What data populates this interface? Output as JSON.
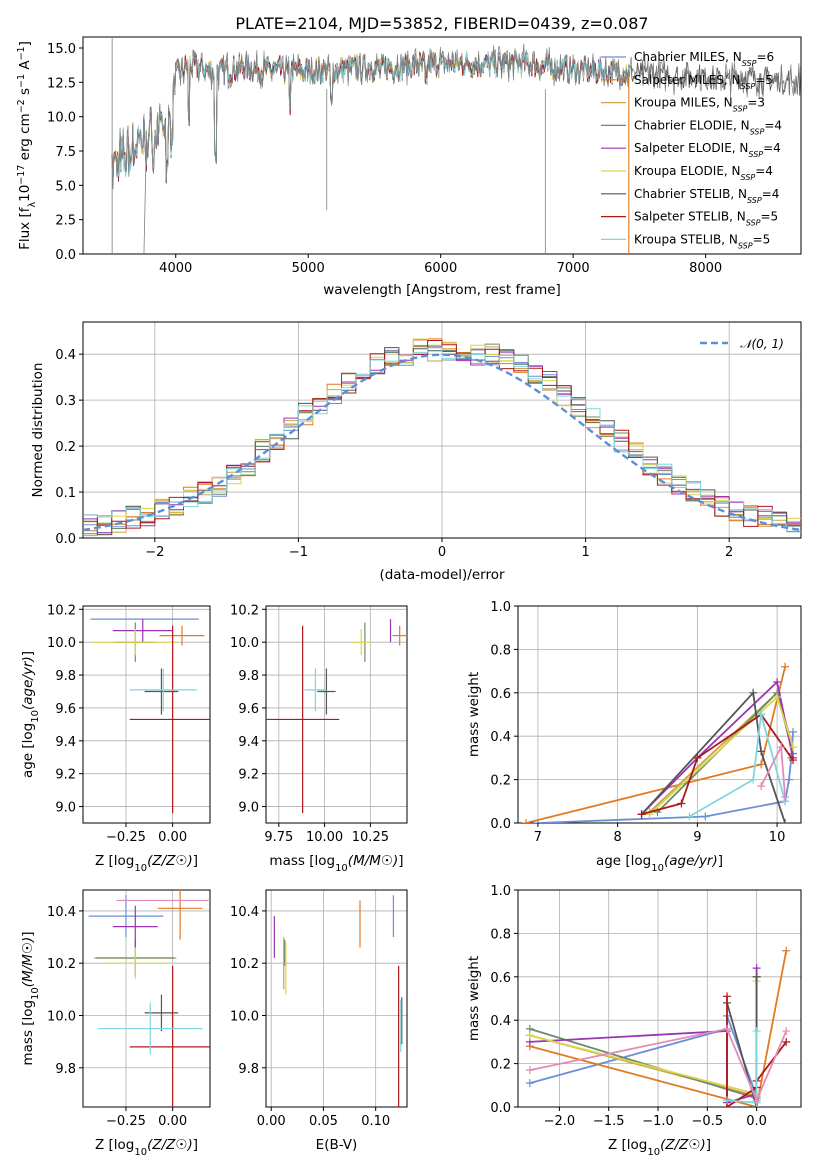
{
  "title": "PLATE=2104, MJD=53852, FIBERID=0439, z=0.087",
  "colors": {
    "Chabrier MILES": "#6a8fd6",
    "Salpeter MILES": "#e07b24",
    "Kroupa MILES": "#c9a24a",
    "Chabrier ELODIE": "#6e8a6e",
    "Salpeter ELODIE": "#9b35b5",
    "Kroupa ELODIE": "#dcd64a",
    "Chabrier STELIB": "#555555",
    "Salpeter STELIB": "#b01818",
    "Kroupa STELIB": "#7fd6e0",
    "data": "#808080",
    "gauss": "#5b8fd8"
  },
  "legend_spectrum": [
    {
      "name": "Chabrier MILES",
      "sub": "SSP",
      "n": "=6"
    },
    {
      "name": "Salpeter MILES",
      "sub": "SSP",
      "n": "=5"
    },
    {
      "name": "Kroupa MILES",
      "sub": "SSP",
      "n": "=3"
    },
    {
      "name": "Chabrier ELODIE",
      "sub": "SSP",
      "n": "=4"
    },
    {
      "name": "Salpeter ELODIE",
      "sub": "SSP",
      "n": "=4"
    },
    {
      "name": "Kroupa ELODIE",
      "sub": "SSP",
      "n": "=4"
    },
    {
      "name": "Chabrier STELIB",
      "sub": "SSP",
      "n": "=4"
    },
    {
      "name": "Salpeter STELIB",
      "sub": "SSP",
      "n": "=5"
    },
    {
      "name": "Kroupa STELIB",
      "sub": "SSP",
      "n": "=5"
    }
  ],
  "legend_hist": "𝒩(0, 1)",
  "chart_data": [
    {
      "id": "spectrum",
      "type": "line",
      "xlabel": "wavelength [Angstrom, rest frame]",
      "ylabel": "Flux [f_λ 10^-17 erg cm^-2 s^-1 A^-1]",
      "xlim": [
        3300,
        8720
      ],
      "ylim": [
        0,
        15.8
      ],
      "xticks": [
        4000,
        5000,
        6000,
        7000,
        8000
      ],
      "yticks": [
        0.0,
        2.5,
        5.0,
        7.5,
        10.0,
        12.5,
        15.0
      ],
      "continuum_x": [
        3550,
        3700,
        3850,
        3950,
        4000,
        4100,
        4300,
        4500,
        4700,
        5000,
        5300,
        5600,
        6000,
        6300,
        6600,
        7000,
        7400,
        7800,
        8200,
        8700
      ],
      "continuum_y": [
        6.5,
        8.0,
        8.5,
        10.0,
        13.0,
        13.8,
        13.2,
        13.6,
        13.4,
        13.3,
        13.5,
        13.6,
        13.9,
        13.8,
        13.9,
        13.4,
        13.2,
        13.0,
        12.8,
        12.6
      ],
      "model_end": [
        7420,
        7420,
        7420,
        7420,
        7420,
        7420,
        8720,
        7420,
        7420
      ]
    },
    {
      "id": "residuals",
      "type": "histogram",
      "xlabel": "(data-model)/error",
      "ylabel": "Normed distribution",
      "xlim": [
        -2.5,
        2.5
      ],
      "ylim": [
        0,
        0.47
      ],
      "xticks": [
        -2,
        -1,
        0,
        1,
        2
      ],
      "yticks": [
        0.0,
        0.1,
        0.2,
        0.3,
        0.4
      ],
      "bins": [
        -2.5,
        -2.4,
        -2.3,
        -2.2,
        -2.1,
        -2.0,
        -1.9,
        -1.8,
        -1.7,
        -1.6,
        -1.5,
        -1.4,
        -1.3,
        -1.2,
        -1.1,
        -1.0,
        -0.9,
        -0.8,
        -0.7,
        -0.6,
        -0.5,
        -0.4,
        -0.3,
        -0.2,
        -0.1,
        0.0,
        0.1,
        0.2,
        0.3,
        0.4,
        0.5,
        0.6,
        0.7,
        0.8,
        0.9,
        1.0,
        1.1,
        1.2,
        1.3,
        1.4,
        1.5,
        1.6,
        1.7,
        1.8,
        1.9,
        2.0,
        2.1,
        2.2,
        2.3,
        2.4,
        2.5
      ],
      "base": [
        0.03,
        0.03,
        0.035,
        0.045,
        0.05,
        0.06,
        0.07,
        0.09,
        0.1,
        0.11,
        0.14,
        0.16,
        0.19,
        0.21,
        0.24,
        0.27,
        0.29,
        0.31,
        0.34,
        0.36,
        0.38,
        0.39,
        0.4,
        0.41,
        0.41,
        0.41,
        0.41,
        0.4,
        0.4,
        0.39,
        0.38,
        0.36,
        0.34,
        0.31,
        0.29,
        0.26,
        0.24,
        0.21,
        0.19,
        0.16,
        0.14,
        0.12,
        0.1,
        0.09,
        0.07,
        0.06,
        0.05,
        0.045,
        0.04,
        0.035
      ],
      "gauss": {
        "mu": 0,
        "sigma": 1
      }
    },
    {
      "id": "age_vs_Z",
      "type": "errorbar",
      "xlabel": "Z [log10(Z/Z☉)]",
      "ylabel": "age  [log10(age/yr)]",
      "xlim": [
        -0.48,
        0.2
      ],
      "ylim": [
        8.9,
        10.22
      ],
      "xticks": [
        -0.25,
        0.0
      ],
      "xticklabels": [
        "−0.25",
        "0.00"
      ],
      "yticks": [
        9.0,
        9.2,
        9.4,
        9.6,
        9.8,
        10.0,
        10.2
      ],
      "points": [
        {
          "s": "Chabrier MILES",
          "x": -0.15,
          "xe": 0.29,
          "y": 10.14,
          "ye": 0.0
        },
        {
          "s": "Salpeter MILES",
          "x": 0.05,
          "xe": 0.12,
          "y": 10.04,
          "ye": 0.06
        },
        {
          "s": "Kroupa MILES",
          "x": -0.2,
          "xe": 0.12,
          "y": 10.0,
          "ye": 0.0
        },
        {
          "s": "Chabrier ELODIE",
          "x": -0.2,
          "xe": 0.1,
          "y": 10.0,
          "ye": 0.12
        },
        {
          "s": "Salpeter ELODIE",
          "x": -0.16,
          "xe": 0.16,
          "y": 10.07,
          "ye": 0.07
        },
        {
          "s": "Kroupa ELODIE",
          "x": -0.2,
          "xe": 0.23,
          "y": 10.0,
          "ye": 0.08
        },
        {
          "s": "Chabrier STELIB",
          "x": -0.06,
          "xe": 0.09,
          "y": 9.7,
          "ye": 0.14
        },
        {
          "s": "Salpeter STELIB",
          "x": 0.0,
          "xe": 0.23,
          "y": 9.53,
          "ye": 0.57
        },
        {
          "s": "Kroupa STELIB",
          "x": -0.05,
          "xe": 0.18,
          "y": 9.71,
          "ye": 0.13
        }
      ]
    },
    {
      "id": "age_vs_mass",
      "type": "errorbar",
      "xlabel": "mass [log10(M/M☉)]",
      "ylabel": "",
      "xlim": [
        9.68,
        10.45
      ],
      "ylim": [
        8.9,
        10.22
      ],
      "xticks": [
        9.75,
        10.0,
        10.25
      ],
      "xticklabels": [
        "9.75",
        "10.00",
        "10.25"
      ],
      "yticks": [
        9.0,
        9.2,
        9.4,
        9.6,
        9.8,
        10.0,
        10.2
      ],
      "points": [
        {
          "s": "Chabrier MILES",
          "x": 10.39,
          "xe": 0.0,
          "y": 10.14,
          "ye": 0.0
        },
        {
          "s": "Salpeter MILES",
          "x": 10.41,
          "xe": 0.04,
          "y": 10.04,
          "ye": 0.06
        },
        {
          "s": "Kroupa MILES",
          "x": 10.22,
          "xe": 0.0,
          "y": 10.0,
          "ye": 0.0
        },
        {
          "s": "Chabrier ELODIE",
          "x": 10.22,
          "xe": 0.0,
          "y": 10.0,
          "ye": 0.12
        },
        {
          "s": "Salpeter ELODIE",
          "x": 10.36,
          "xe": 0.0,
          "y": 10.07,
          "ye": 0.07
        },
        {
          "s": "Kroupa ELODIE",
          "x": 10.2,
          "xe": 0.06,
          "y": 10.0,
          "ye": 0.08
        },
        {
          "s": "Chabrier STELIB",
          "x": 10.01,
          "xe": 0.05,
          "y": 9.7,
          "ye": 0.14
        },
        {
          "s": "Salpeter STELIB",
          "x": 9.88,
          "xe": 0.2,
          "y": 9.53,
          "ye": 0.57
        },
        {
          "s": "Kroupa STELIB",
          "x": 9.95,
          "xe": 0.06,
          "y": 9.71,
          "ye": 0.13
        }
      ]
    },
    {
      "id": "weight_vs_age",
      "type": "line",
      "xlabel": "age  [log10(age/yr)]",
      "ylabel": "mass weight",
      "xlim": [
        6.75,
        10.3
      ],
      "ylim": [
        0.0,
        1.0
      ],
      "xticks": [
        7,
        8,
        9,
        10
      ],
      "yticks": [
        0.0,
        0.2,
        0.4,
        0.6,
        0.8,
        1.0
      ],
      "series": [
        {
          "s": "Chabrier MILES",
          "x": [
            7.0,
            9.1,
            10.1,
            10.15,
            10.18,
            10.2
          ],
          "y": [
            0.0,
            0.03,
            0.1,
            0.2,
            0.3,
            0.42
          ]
        },
        {
          "s": "Salpeter MILES",
          "x": [
            6.85,
            9.8,
            10.1
          ],
          "y": [
            0.0,
            0.27,
            0.72
          ]
        },
        {
          "s": "Kroupa MILES",
          "x": [
            8.4,
            10.0,
            10.2
          ],
          "y": [
            0.05,
            0.6,
            0.35
          ]
        },
        {
          "s": "Chabrier ELODIE",
          "x": [
            8.5,
            10.0,
            10.2
          ],
          "y": [
            0.05,
            0.6,
            0.32
          ]
        },
        {
          "s": "Salpeter ELODIE",
          "x": [
            8.3,
            9.0,
            10.0,
            10.2
          ],
          "y": [
            0.04,
            0.3,
            0.65,
            0.3
          ]
        },
        {
          "s": "Kroupa ELODIE",
          "x": [
            8.4,
            10.0,
            10.2
          ],
          "y": [
            0.04,
            0.58,
            0.35
          ]
        },
        {
          "s": "Chabrier STELIB",
          "x": [
            8.3,
            9.7,
            9.8,
            10.1
          ],
          "y": [
            0.04,
            0.6,
            0.33,
            0.0
          ]
        },
        {
          "s": "Salpeter STELIB",
          "x": [
            8.3,
            8.8,
            9.0,
            9.8,
            10.2
          ],
          "y": [
            0.04,
            0.09,
            0.3,
            0.5,
            0.29
          ]
        },
        {
          "s": "Kroupa STELIB",
          "x": [
            8.9,
            9.7,
            9.8,
            10.1
          ],
          "y": [
            0.03,
            0.2,
            0.5,
            0.1
          ]
        }
      ],
      "extra": {
        "s": "Salpeter ELODIE",
        "x": [
          9.8,
          10.05,
          10.1
        ],
        "y": [
          0.17,
          0.35,
          0.12
        ]
      }
    },
    {
      "id": "mass_vs_Z",
      "type": "errorbar",
      "xlabel": "Z [log10(Z/Z☉)]",
      "ylabel": "mass [log10(M/M☉)]",
      "xlim": [
        -0.48,
        0.2
      ],
      "ylim": [
        9.65,
        10.48
      ],
      "xticks": [
        -0.25,
        0.0
      ],
      "xticklabels": [
        "−0.25",
        "0.00"
      ],
      "yticks": [
        9.8,
        10.0,
        10.2,
        10.4
      ],
      "points": [
        {
          "s": "Chabrier MILES",
          "x": -0.25,
          "xe": 0.2,
          "y": 10.38,
          "ye": 0.08
        },
        {
          "s": "Salpeter MILES",
          "x": 0.04,
          "xe": 0.12,
          "y": 10.41,
          "ye": 0.12
        },
        {
          "s": "Kroupa MILES",
          "x": -0.2,
          "xe": 0.22,
          "y": 10.22,
          "ye": 0.0
        },
        {
          "s": "Chabrier ELODIE",
          "x": -0.2,
          "xe": 0.21,
          "y": 10.22,
          "ye": 0.07
        },
        {
          "s": "Salpeter ELODIE",
          "x": -0.2,
          "xe": 0.12,
          "y": 10.34,
          "ye": 0.08
        },
        {
          "s": "Kroupa ELODIE",
          "x": -0.2,
          "xe": 0.18,
          "y": 10.2,
          "ye": 0.06
        },
        {
          "s": "Chabrier STELIB",
          "x": -0.06,
          "xe": 0.09,
          "y": 10.01,
          "ye": 0.07
        },
        {
          "s": "Salpeter STELIB",
          "x": 0.0,
          "xe": 0.23,
          "y": 9.88,
          "ye": 0.31
        },
        {
          "s": "Kroupa STELIB",
          "x": -0.12,
          "xe": 0.28,
          "y": 9.95,
          "ye": 0.1
        }
      ],
      "extra": {
        "s": "Salpeter MILES",
        "x": -0.05,
        "xe": 0.25,
        "y": 10.44,
        "ye": 0.0,
        "c": "Salpeter ELODIE pink"
      }
    },
    {
      "id": "mass_vs_ebv",
      "type": "errorbar",
      "xlabel": "E(B-V)",
      "ylabel": "",
      "xlim": [
        -0.005,
        0.13
      ],
      "ylim": [
        9.65,
        10.48
      ],
      "xticks": [
        0.0,
        0.05,
        0.1
      ],
      "xticklabels": [
        "0.00",
        "0.05",
        "0.10"
      ],
      "yticks": [
        9.8,
        10.0,
        10.2,
        10.4
      ],
      "points": [
        {
          "s": "Chabrier MILES",
          "x": 0.117,
          "xe": 0.0,
          "y": 10.38,
          "ye": 0.08
        },
        {
          "s": "Salpeter MILES",
          "x": 0.085,
          "xe": 0.0,
          "y": 10.35,
          "ye": 0.09
        },
        {
          "s": "Kroupa MILES",
          "x": 0.012,
          "xe": 0.0,
          "y": 10.2,
          "ye": 0.1
        },
        {
          "s": "Chabrier ELODIE",
          "x": 0.013,
          "xe": 0.0,
          "y": 10.24,
          "ye": 0.05
        },
        {
          "s": "Salpeter ELODIE",
          "x": 0.003,
          "xe": 0.0,
          "y": 10.3,
          "ye": 0.08
        },
        {
          "s": "Kroupa ELODIE",
          "x": 0.014,
          "xe": 0.0,
          "y": 10.18,
          "ye": 0.1
        },
        {
          "s": "Chabrier STELIB",
          "x": 0.125,
          "xe": 0.0,
          "y": 9.98,
          "ye": 0.09
        },
        {
          "s": "Salpeter STELIB",
          "x": 0.122,
          "xe": 0.0,
          "y": 9.88,
          "ye": 0.31
        },
        {
          "s": "Kroupa STELIB",
          "x": 0.124,
          "xe": 0.0,
          "y": 9.96,
          "ye": 0.1
        }
      ]
    },
    {
      "id": "weight_vs_Z",
      "type": "line",
      "xlabel": "Z [log10(Z/Z☉)]",
      "ylabel": "mass weight",
      "xlim": [
        -2.42,
        0.45
      ],
      "ylim": [
        0.0,
        1.0
      ],
      "xticks": [
        -2.0,
        -1.5,
        -1.0,
        -0.5,
        0.0
      ],
      "xticklabels": [
        "−2.0",
        "−1.5",
        "−1.0",
        "−0.5",
        "0.0"
      ],
      "yticks": [
        0.0,
        0.2,
        0.4,
        0.6,
        0.8,
        1.0
      ],
      "series": [
        {
          "s": "Chabrier MILES",
          "x": [
            -2.3,
            -0.3,
            -0.3,
            0.0,
            0.0
          ],
          "y": [
            0.11,
            0.36,
            0.42,
            0.05,
            0.12
          ]
        },
        {
          "s": "Salpeter MILES",
          "x": [
            -2.3,
            0.0,
            0.3
          ],
          "y": [
            0.28,
            0.0,
            0.72
          ]
        },
        {
          "s": "Kroupa MILES",
          "x": [
            -2.3,
            0.0,
            0.0
          ],
          "y": [
            0.33,
            0.05,
            0.6
          ]
        },
        {
          "s": "Chabrier ELODIE",
          "x": [
            -2.3,
            0.0,
            0.0
          ],
          "y": [
            0.36,
            0.04,
            0.6
          ]
        },
        {
          "s": "Salpeter ELODIE",
          "x": [
            -2.3,
            -0.3,
            -0.3,
            0.0,
            0.0
          ],
          "y": [
            0.3,
            0.35,
            0.02,
            0.06,
            0.64
          ]
        },
        {
          "s": "Kroupa ELODIE",
          "x": [
            -2.3,
            0.0,
            0.0
          ],
          "y": [
            0.33,
            0.06,
            0.58
          ]
        },
        {
          "s": "Chabrier STELIB",
          "x": [
            -0.3,
            0.0,
            0.0
          ],
          "y": [
            0.48,
            0.0,
            0.6
          ]
        },
        {
          "s": "Salpeter STELIB",
          "x": [
            -0.3,
            -0.3,
            0.0,
            0.0,
            0.3
          ],
          "y": [
            0.51,
            0.0,
            0.09,
            0.12,
            0.3
          ]
        },
        {
          "s": "Kroupa STELIB",
          "x": [
            -0.3,
            0.0,
            0.0
          ],
          "y": [
            0.03,
            0.02,
            0.35
          ]
        }
      ],
      "extra": {
        "s": "Salpeter ELODIE",
        "x": [
          -2.3,
          -0.3,
          0.0,
          0.3
        ],
        "y": [
          0.17,
          0.36,
          0.03,
          0.35
        ]
      }
    }
  ]
}
